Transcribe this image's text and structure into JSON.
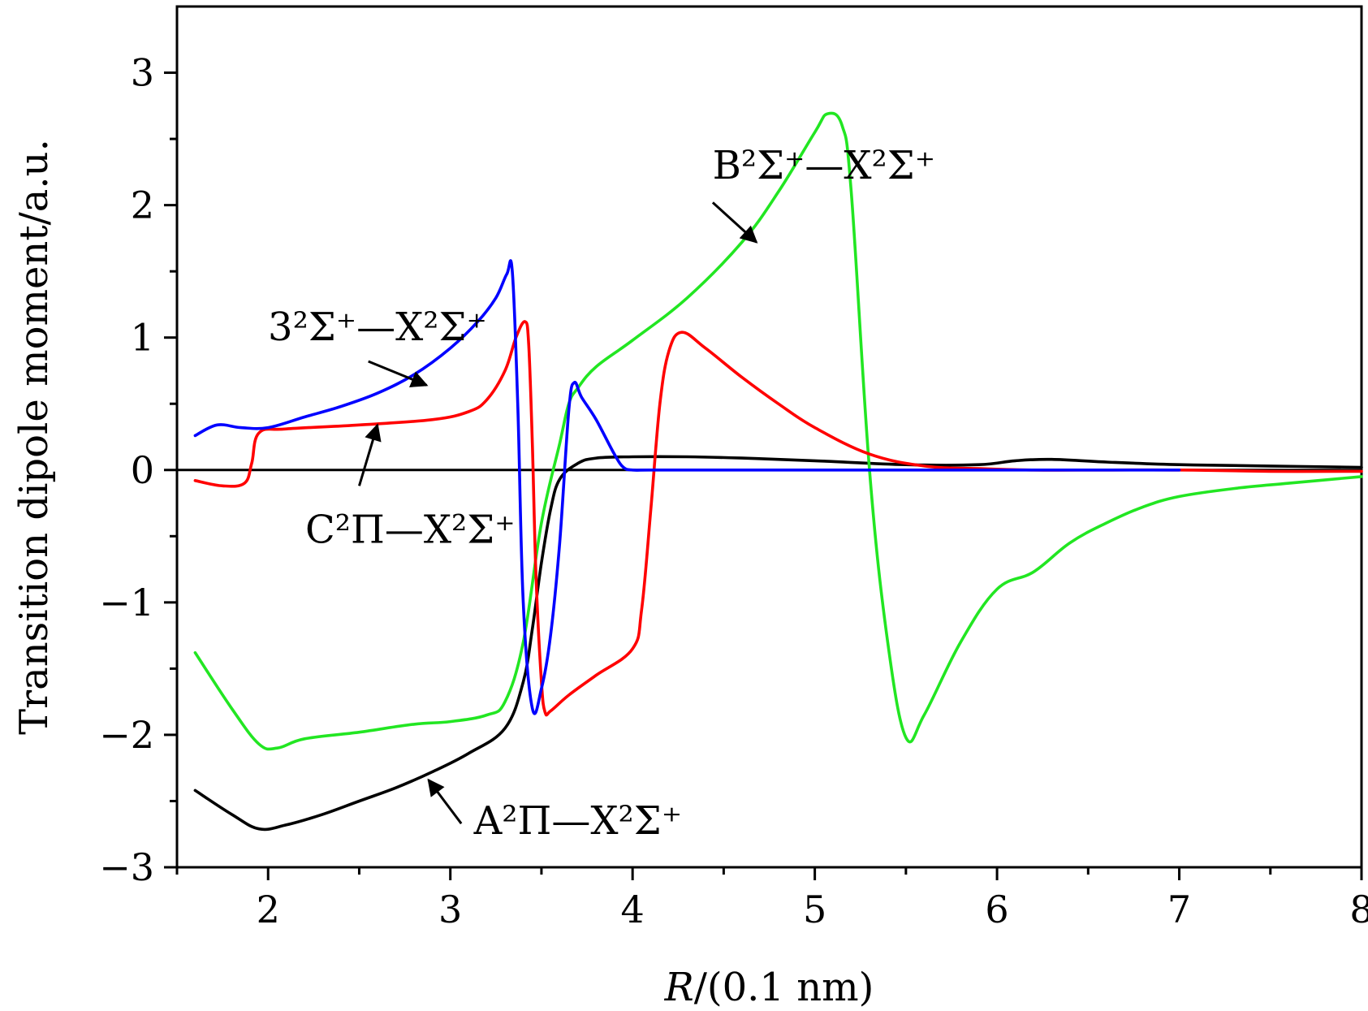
{
  "chart_data": {
    "type": "line",
    "title": "",
    "xlabel_italic": "R",
    "xlabel_rest": "/(0.1 nm)",
    "ylabel": "Transition dipole moment/a.u.",
    "xlim": [
      1.5,
      8
    ],
    "ylim": [
      -3,
      3.5
    ],
    "xticks": [
      2,
      3,
      4,
      5,
      6,
      7,
      8
    ],
    "xtick_labels": [
      "2",
      "3",
      "4",
      "5",
      "6",
      "7",
      "8"
    ],
    "yticks": [
      -3,
      -2,
      -1,
      0,
      1,
      2,
      3
    ],
    "ytick_labels": [
      "−3",
      "−2",
      "−1",
      "0",
      "1",
      "2",
      "3"
    ],
    "zero_line": 0,
    "series": [
      {
        "name": "A²Π—X²Σ⁺",
        "color": "#000000",
        "x": [
          1.6,
          1.8,
          1.95,
          2.1,
          2.3,
          2.5,
          2.7,
          2.9,
          3.1,
          3.3,
          3.4,
          3.45,
          3.5,
          3.55,
          3.6,
          3.7,
          3.8,
          4.0,
          4.3,
          4.6,
          5.0,
          5.5,
          5.9,
          6.1,
          6.3,
          6.6,
          7.0,
          7.5,
          8.0
        ],
        "y": [
          -2.42,
          -2.6,
          -2.71,
          -2.68,
          -2.6,
          -2.5,
          -2.4,
          -2.28,
          -2.14,
          -1.95,
          -1.6,
          -1.2,
          -0.7,
          -0.3,
          -0.07,
          0.05,
          0.09,
          0.1,
          0.1,
          0.09,
          0.07,
          0.04,
          0.04,
          0.07,
          0.08,
          0.06,
          0.04,
          0.03,
          0.02
        ]
      },
      {
        "name": "B²Σ⁺—X²Σ⁺",
        "color": "#22e622",
        "x": [
          1.6,
          1.8,
          1.95,
          2.05,
          2.2,
          2.5,
          2.8,
          3.0,
          3.2,
          3.3,
          3.4,
          3.5,
          3.6,
          3.65,
          3.7,
          3.8,
          4.0,
          4.3,
          4.6,
          4.8,
          5.0,
          5.07,
          5.15,
          5.2,
          5.3,
          5.4,
          5.5,
          5.6,
          5.8,
          6.0,
          6.2,
          6.4,
          6.6,
          6.8,
          7.0,
          7.3,
          7.6,
          8.0
        ],
        "y": [
          -1.38,
          -1.8,
          -2.07,
          -2.1,
          -2.03,
          -1.98,
          -1.92,
          -1.9,
          -1.85,
          -1.75,
          -1.3,
          -0.4,
          0.2,
          0.5,
          0.62,
          0.78,
          0.98,
          1.3,
          1.72,
          2.1,
          2.55,
          2.69,
          2.6,
          2.1,
          0.0,
          -1.3,
          -2.02,
          -1.85,
          -1.3,
          -0.9,
          -0.77,
          -0.55,
          -0.4,
          -0.28,
          -0.2,
          -0.14,
          -0.1,
          -0.05
        ]
      },
      {
        "name": "C²Π—X²Σ⁺",
        "color": "#ff0000",
        "x": [
          1.6,
          1.75,
          1.87,
          1.91,
          1.95,
          2.1,
          2.5,
          2.9,
          3.1,
          3.2,
          3.3,
          3.36,
          3.41,
          3.43,
          3.45,
          3.47,
          3.5,
          3.52,
          3.55,
          3.65,
          3.8,
          4.0,
          4.05,
          4.1,
          4.15,
          4.2,
          4.27,
          4.4,
          4.6,
          4.8,
          5.0,
          5.3,
          5.6,
          5.9,
          6.2,
          6.6,
          7.0,
          7.5,
          8.0
        ],
        "y": [
          -0.08,
          -0.12,
          -0.1,
          0.05,
          0.28,
          0.31,
          0.34,
          0.38,
          0.44,
          0.53,
          0.75,
          1.0,
          1.12,
          0.95,
          0.2,
          -0.8,
          -1.6,
          -1.83,
          -1.82,
          -1.7,
          -1.55,
          -1.35,
          -1.05,
          -0.3,
          0.5,
          0.9,
          1.04,
          0.92,
          0.7,
          0.5,
          0.32,
          0.12,
          0.03,
          0.01,
          0.0,
          0.0,
          0.0,
          -0.01,
          -0.01
        ]
      },
      {
        "name": "3²Σ⁺—X²Σ⁺",
        "color": "#0000ff",
        "x": [
          1.6,
          1.72,
          1.85,
          2.0,
          2.2,
          2.4,
          2.6,
          2.8,
          3.0,
          3.15,
          3.25,
          3.31,
          3.34,
          3.37,
          3.4,
          3.45,
          3.5,
          3.55,
          3.6,
          3.65,
          3.68,
          3.72,
          3.8,
          3.9,
          3.95,
          4.0,
          4.1,
          4.5,
          5.0,
          6.0,
          7.0
        ],
        "y": [
          0.26,
          0.34,
          0.32,
          0.32,
          0.4,
          0.48,
          0.58,
          0.72,
          0.92,
          1.12,
          1.3,
          1.48,
          1.5,
          0.5,
          -1.0,
          -1.8,
          -1.65,
          -1.25,
          -0.55,
          0.45,
          0.66,
          0.55,
          0.38,
          0.12,
          0.02,
          0.0,
          0.0,
          0.0,
          0.0,
          0.0,
          0.0
        ]
      }
    ],
    "annotations": [
      {
        "label": "B²Σ⁺—X²Σ⁺",
        "text_x": 5.05,
        "text_y": 2.2,
        "anchor": "middle",
        "arrow_from": [
          4.44,
          2.02
        ],
        "arrow_to": [
          4.68,
          1.72
        ]
      },
      {
        "label": "3²Σ⁺—X²Σ⁺",
        "text_x": 2.6,
        "text_y": 0.98,
        "anchor": "middle",
        "arrow_from": [
          2.55,
          0.82
        ],
        "arrow_to": [
          2.87,
          0.64
        ]
      },
      {
        "label": "C²Π—X²Σ⁺",
        "text_x": 2.78,
        "text_y": -0.55,
        "anchor": "middle",
        "arrow_from": [
          2.5,
          -0.12
        ],
        "arrow_to": [
          2.6,
          0.34
        ]
      },
      {
        "label": "A²Π—X²Σ⁺",
        "text_x": 3.7,
        "text_y": -2.75,
        "anchor": "middle",
        "arrow_from": [
          3.06,
          -2.67
        ],
        "arrow_to": [
          2.88,
          -2.34
        ]
      }
    ]
  }
}
